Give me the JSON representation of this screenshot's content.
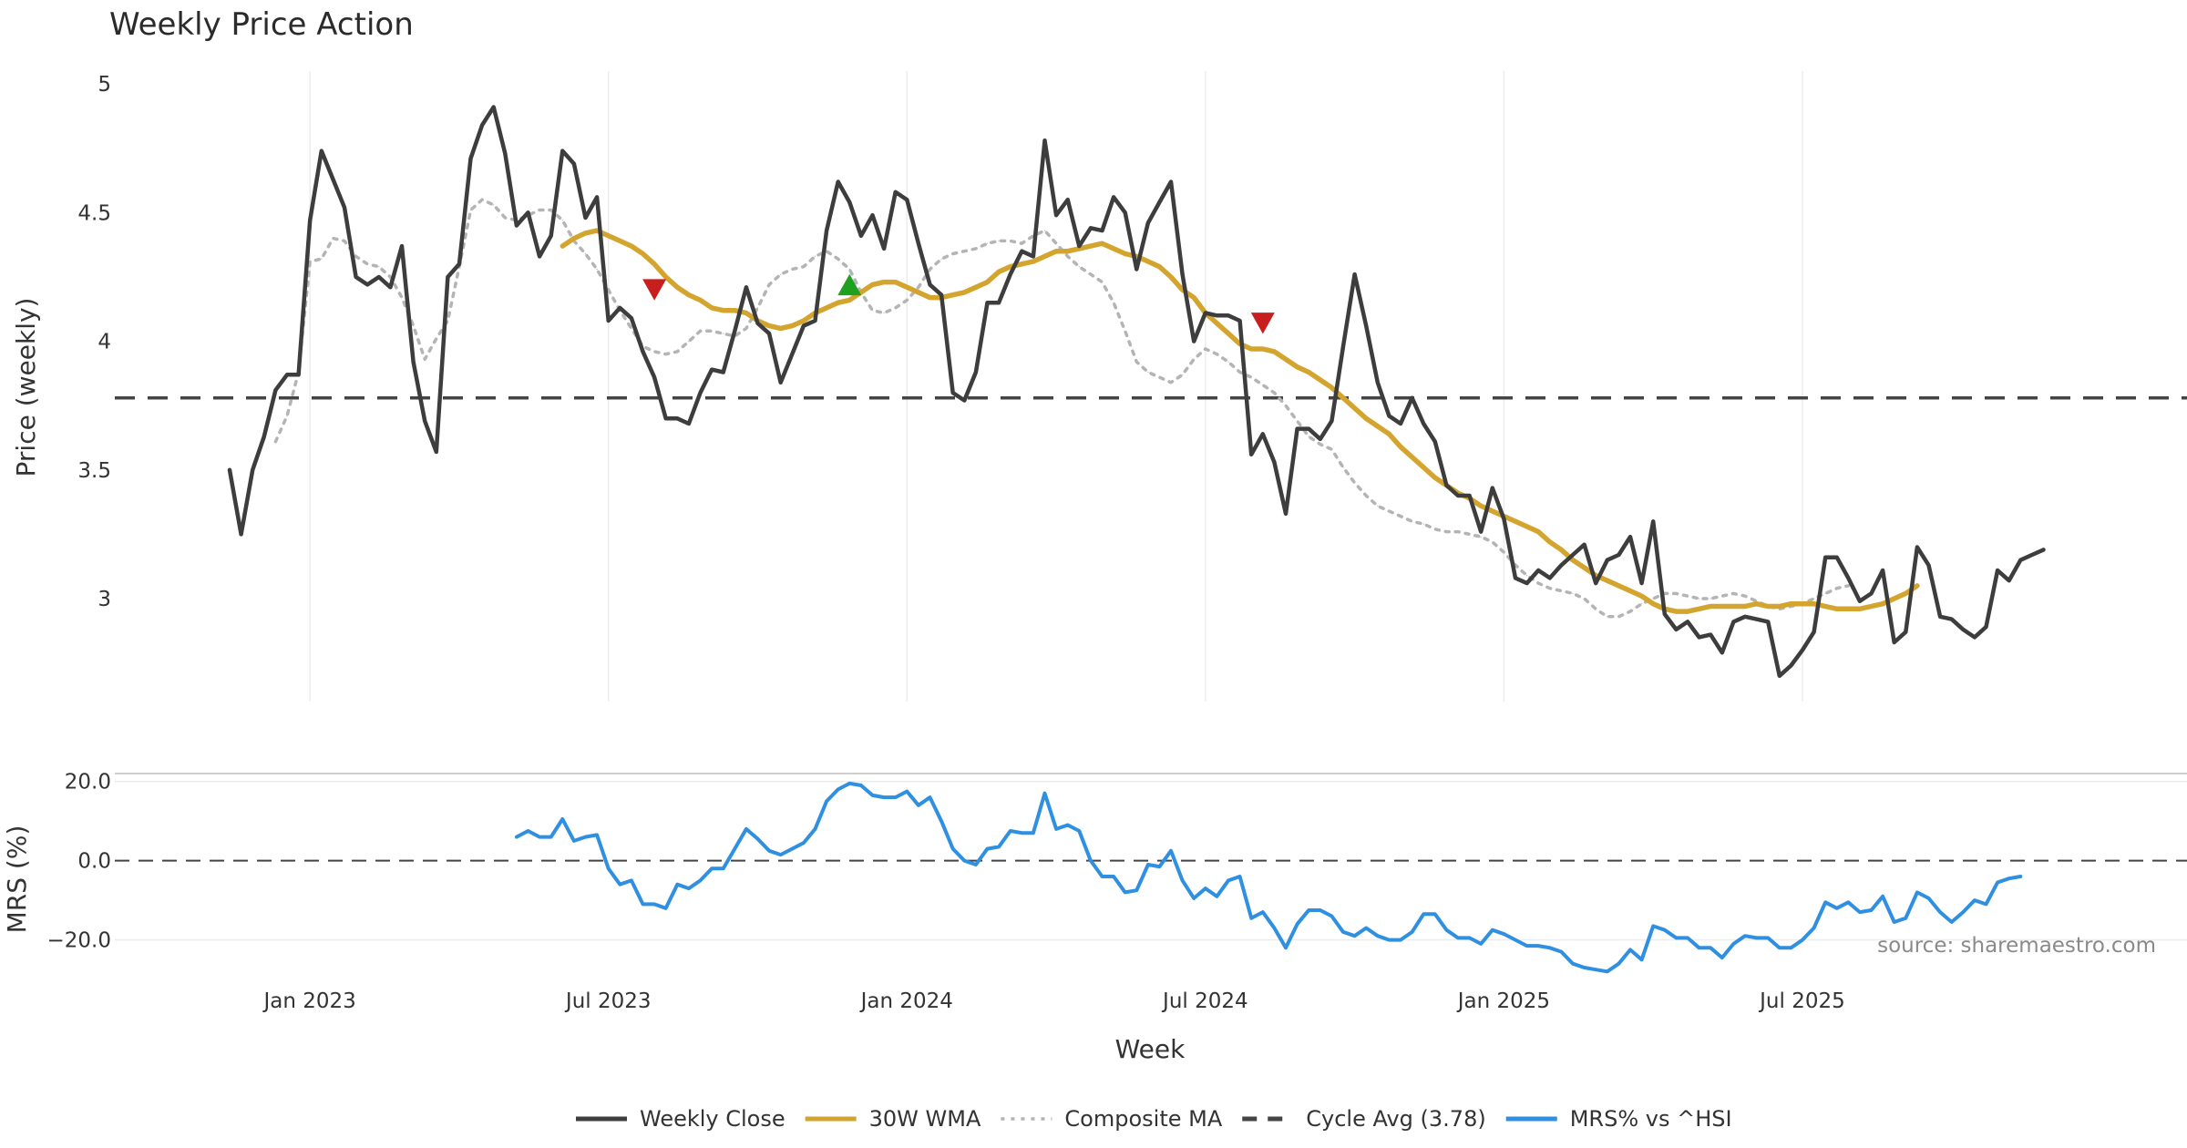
{
  "chart_data": {
    "type": "line",
    "title": "Weekly Price Action",
    "xlabel": "Week",
    "source": "source: sharemaestro.com",
    "x_ticks": [
      "Jan 2023",
      "Jul 2023",
      "Jan 2024",
      "Jul 2024",
      "Jan 2025",
      "Jul 2025"
    ],
    "x_range_weeks": [
      -17,
      163.5
    ],
    "x_tick_weeks": [
      0,
      26,
      52,
      78,
      104,
      130
    ],
    "price_panel": {
      "ylabel": "Price (weekly)",
      "ylim": [
        2.6,
        5.05
      ],
      "y_ticks": [
        3,
        3.5,
        4,
        4.5,
        5
      ],
      "y_tick_labels": [
        "3",
        "3.5",
        "4",
        "4.5",
        "5"
      ],
      "cycle_avg": 3.78,
      "series": [
        {
          "name": "Weekly Close",
          "color": "#3d3d3d",
          "style": "solid",
          "start_week": -7,
          "values": [
            3.5,
            3.25,
            3.5,
            3.63,
            3.81,
            3.87,
            3.87,
            4.47,
            4.74,
            4.63,
            4.52,
            4.25,
            4.22,
            4.25,
            4.21,
            4.37,
            3.92,
            3.69,
            3.57,
            4.25,
            4.3,
            4.71,
            4.84,
            4.91,
            4.73,
            4.45,
            4.5,
            4.33,
            4.41,
            4.74,
            4.69,
            4.48,
            4.56,
            4.08,
            4.13,
            4.09,
            3.96,
            3.86,
            3.7,
            3.7,
            3.68,
            3.8,
            3.89,
            3.88,
            4.04,
            4.21,
            4.07,
            4.03,
            3.84,
            3.95,
            4.06,
            4.08,
            4.43,
            4.62,
            4.54,
            4.41,
            4.49,
            4.36,
            4.58,
            4.55,
            4.38,
            4.22,
            4.18,
            3.8,
            3.77,
            3.88,
            4.15,
            4.15,
            4.26,
            4.35,
            4.33,
            4.78,
            4.49,
            4.55,
            4.37,
            4.44,
            4.43,
            4.56,
            4.5,
            4.28,
            4.46,
            4.54,
            4.62,
            4.26,
            4.0,
            4.11,
            4.1,
            4.1,
            4.08,
            3.56,
            3.64,
            3.53,
            3.33,
            3.66,
            3.66,
            3.62,
            3.69,
            3.98,
            4.26,
            4.06,
            3.84,
            3.71,
            3.68,
            3.78,
            3.68,
            3.61,
            3.44,
            3.4,
            3.4,
            3.26,
            3.43,
            3.31,
            3.08,
            3.06,
            3.11,
            3.08,
            3.13,
            3.17,
            3.21,
            3.06,
            3.15,
            3.17,
            3.24,
            3.06,
            3.3,
            2.94,
            2.88,
            2.91,
            2.85,
            2.86,
            2.79,
            2.91,
            2.93,
            2.92,
            2.91,
            2.7,
            2.74,
            2.8,
            2.87,
            3.16,
            3.16,
            3.08,
            2.99,
            3.02,
            3.11,
            2.83,
            2.87,
            3.2,
            3.13,
            2.93,
            2.92,
            2.88,
            2.85,
            2.89,
            3.11,
            3.07,
            3.15,
            3.17,
            3.19
          ]
        },
        {
          "name": "30W WMA",
          "color": "#d4a52e",
          "style": "solid",
          "start_week": 22,
          "values": [
            4.37,
            4.4,
            4.42,
            4.43,
            4.41,
            4.39,
            4.37,
            4.34,
            4.3,
            4.25,
            4.21,
            4.18,
            4.16,
            4.13,
            4.12,
            4.12,
            4.11,
            4.08,
            4.06,
            4.05,
            4.06,
            4.08,
            4.11,
            4.13,
            4.15,
            4.16,
            4.19,
            4.22,
            4.23,
            4.23,
            4.21,
            4.19,
            4.17,
            4.17,
            4.18,
            4.19,
            4.21,
            4.23,
            4.27,
            4.29,
            4.3,
            4.31,
            4.33,
            4.35,
            4.35,
            4.36,
            4.37,
            4.38,
            4.36,
            4.34,
            4.33,
            4.31,
            4.29,
            4.25,
            4.2,
            4.17,
            4.11,
            4.07,
            4.03,
            3.99,
            3.97,
            3.97,
            3.96,
            3.93,
            3.9,
            3.88,
            3.85,
            3.82,
            3.78,
            3.74,
            3.7,
            3.67,
            3.64,
            3.59,
            3.55,
            3.51,
            3.47,
            3.44,
            3.41,
            3.39,
            3.36,
            3.34,
            3.32,
            3.3,
            3.28,
            3.26,
            3.22,
            3.19,
            3.15,
            3.12,
            3.09,
            3.07,
            3.05,
            3.03,
            3.01,
            2.98,
            2.96,
            2.95,
            2.95,
            2.96,
            2.97,
            2.97,
            2.97,
            2.97,
            2.98,
            2.97,
            2.97,
            2.98,
            2.98,
            2.98,
            2.97,
            2.96,
            2.96,
            2.96,
            2.97,
            2.98,
            3.0,
            3.02,
            3.05
          ]
        },
        {
          "name": "Composite MA",
          "color": "#b4b4b4",
          "style": "dotted",
          "start_week": -3,
          "values": [
            3.61,
            3.71,
            3.88,
            4.31,
            4.32,
            4.4,
            4.39,
            4.33,
            4.3,
            4.29,
            4.25,
            4.17,
            4.06,
            3.93,
            4.01,
            4.08,
            4.29,
            4.51,
            4.55,
            4.53,
            4.48,
            4.47,
            4.49,
            4.51,
            4.51,
            4.47,
            4.39,
            4.34,
            4.28,
            4.2,
            4.12,
            4.05,
            3.98,
            3.96,
            3.95,
            3.96,
            4.0,
            4.04,
            4.04,
            4.03,
            4.02,
            4.05,
            4.13,
            4.22,
            4.26,
            4.28,
            4.29,
            4.33,
            4.35,
            4.32,
            4.28,
            4.19,
            4.12,
            4.11,
            4.13,
            4.16,
            4.21,
            4.28,
            4.32,
            4.34,
            4.35,
            4.36,
            4.38,
            4.39,
            4.39,
            4.38,
            4.41,
            4.43,
            4.38,
            4.33,
            4.29,
            4.26,
            4.23,
            4.15,
            4.04,
            3.92,
            3.88,
            3.86,
            3.84,
            3.87,
            3.93,
            3.97,
            3.95,
            3.92,
            3.88,
            3.86,
            3.83,
            3.8,
            3.75,
            3.69,
            3.63,
            3.6,
            3.58,
            3.51,
            3.45,
            3.4,
            3.36,
            3.34,
            3.32,
            3.3,
            3.29,
            3.27,
            3.26,
            3.26,
            3.25,
            3.24,
            3.22,
            3.18,
            3.13,
            3.09,
            3.06,
            3.04,
            3.03,
            3.02,
            3.0,
            2.96,
            2.93,
            2.93,
            2.95,
            2.98,
            3.0,
            3.02,
            3.02,
            3.01,
            3.0,
            3.0,
            3.01,
            3.02,
            3.01,
            2.99,
            2.97,
            2.96,
            2.97,
            2.98,
            3.0,
            3.02,
            3.04,
            3.05
          ]
        }
      ],
      "markers": [
        {
          "type": "sell",
          "week": 30,
          "value": 4.2,
          "color": "#c81e1e"
        },
        {
          "type": "buy",
          "week": 47,
          "value": 4.22,
          "color": "#1fa01f"
        },
        {
          "type": "sell",
          "week": 83,
          "value": 4.07,
          "color": "#c81e1e"
        }
      ]
    },
    "mrs_panel": {
      "ylabel": "MRS (%)",
      "ylim": [
        -27,
        22
      ],
      "y_ticks": [
        -20,
        0,
        20
      ],
      "y_tick_labels": [
        "−20.0",
        "0.0",
        "20.0"
      ],
      "reference_line": 0,
      "series": [
        {
          "name": "MRS% vs ^HSI",
          "color": "#2f8fe0",
          "style": "solid",
          "start_week": 18,
          "values": [
            6,
            7.5,
            6,
            6,
            10.5,
            5,
            6,
            6.5,
            -2,
            -6,
            -5,
            -11,
            -11,
            -12,
            -6,
            -7,
            -5,
            -2,
            -2,
            3,
            8,
            5.5,
            2.5,
            1.5,
            3,
            4.5,
            8,
            15,
            18,
            19.5,
            19,
            16.5,
            16,
            16,
            17.5,
            14,
            16,
            10,
            3,
            0,
            -1,
            3,
            3.5,
            7.5,
            7,
            7,
            17,
            8,
            9,
            7.5,
            0,
            -4,
            -4,
            -8,
            -7.5,
            -1,
            -1.5,
            2.5,
            -5,
            -9.5,
            -7,
            -9,
            -5,
            -4,
            -14.5,
            -13,
            -17,
            -22,
            -16,
            -12.5,
            -12.5,
            -14,
            -18,
            -19,
            -17,
            -19,
            -20,
            -20,
            -18,
            -13.5,
            -13.5,
            -17.5,
            -19.5,
            -19.5,
            -21,
            -17.5,
            -18.5,
            -20,
            -21.5,
            -21.5,
            -22,
            -23,
            -26,
            -27,
            -27.5,
            -28,
            -26,
            -22.5,
            -25,
            -16.5,
            -17.5,
            -19.5,
            -19.5,
            -22,
            -22,
            -24.5,
            -21,
            -19,
            -19.5,
            -19.5,
            -22,
            -22,
            -20,
            -17,
            -10.5,
            -12,
            -10.5,
            -13,
            -12.5,
            -9,
            -15.5,
            -14.5,
            -8,
            -9.5,
            -13,
            -15.5,
            -13,
            -10,
            -11,
            -5.5,
            -4.5,
            -4
          ]
        }
      ]
    },
    "legend": [
      {
        "label": "Weekly Close",
        "color": "#3d3d3d",
        "style": "solid"
      },
      {
        "label": "30W WMA",
        "color": "#d4a52e",
        "style": "solid"
      },
      {
        "label": "Composite MA",
        "color": "#b4b4b4",
        "style": "dotted"
      },
      {
        "label": "Cycle Avg (3.78)",
        "color": "#444444",
        "style": "dashed"
      },
      {
        "label": "MRS% vs ^HSI",
        "color": "#2f8fe0",
        "style": "solid"
      }
    ],
    "legend_position": "bottom-center"
  }
}
